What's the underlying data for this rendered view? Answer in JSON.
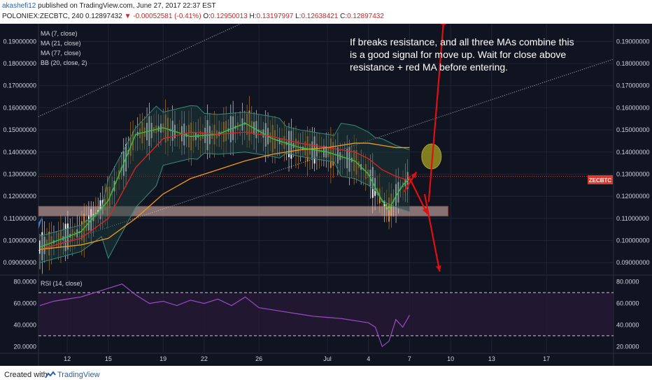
{
  "header": {
    "author": "akashefi12",
    "published": "published on TradingView.com, June 27, 2017 22:37 EST",
    "symbol": "POLONIEX:ZECBTC, 240",
    "last": "0.12897432",
    "change": "▼ -0.00052581 (-0.41%)",
    "o_label": "O:",
    "o_value": "0.12950013",
    "h_label": "H:",
    "h_value": "0.13197997",
    "l_label": "L:",
    "l_value": "0.12638421",
    "c_label": "C:",
    "c_value": "0.12897432"
  },
  "legend": {
    "ma7": "MA (7, close)",
    "ma21": "MA (21, close)",
    "ma77": "MA (77, close)",
    "bb": "BB (20, close, 2)"
  },
  "rsi_label": "RSI (14, close)",
  "symbol_badge": "ZECBTC",
  "annotation": "If breaks resistance, and all three MAs combine this is a good signal for move up. Wait for close above resistance + red MA before entering.",
  "annotation_lines": [
    "If breaks resistance, and all three MAs combine this",
    "is a good signal for move up. Wait for close above",
    "resistance + red MA before entering."
  ],
  "footer": {
    "created": "Created with",
    "brand": "TradingView"
  },
  "colors": {
    "background": "#101420",
    "ma7": "#2ecc40",
    "ma21": "#e02424",
    "ma77": "#f29a1c",
    "bb": "#3a8a7a",
    "rsi": "#9b4bc6",
    "support_zone": "#e8c0b8",
    "circle": "#a8a020",
    "arrow": "#e01010"
  },
  "chart_data": [
    {
      "type": "line",
      "title": "",
      "x_ticks": [
        "12",
        "15",
        "19",
        "22",
        "26",
        "Jul",
        "4",
        "7",
        "10",
        "13",
        "17"
      ],
      "y_ticks": [
        "0.09000000",
        "0.10000000",
        "0.11000000",
        "0.12000000",
        "0.13000000",
        "0.14000000",
        "0.15000000",
        "0.16000000",
        "0.17000000",
        "0.18000000",
        "0.19000000"
      ],
      "ylim": [
        0.085,
        0.198
      ],
      "current_price": 0.12897432,
      "support_zone": [
        0.111,
        0.1155
      ],
      "series": [
        {
          "name": "MA (7, close)",
          "x": [
            0,
            3,
            5,
            7,
            9,
            11,
            13,
            15,
            17,
            19,
            21,
            23,
            24,
            25,
            25.5,
            26,
            26.5,
            27
          ],
          "values": [
            0.097,
            0.104,
            0.118,
            0.148,
            0.151,
            0.147,
            0.148,
            0.153,
            0.146,
            0.142,
            0.14,
            0.136,
            0.13,
            0.118,
            0.114,
            0.12,
            0.125,
            0.128
          ]
        },
        {
          "name": "MA (21, close)",
          "x": [
            0,
            3,
            5,
            7,
            9,
            11,
            13,
            15,
            17,
            19,
            21,
            23,
            24,
            25,
            26,
            27
          ],
          "values": [
            0.096,
            0.101,
            0.11,
            0.133,
            0.146,
            0.149,
            0.148,
            0.149,
            0.147,
            0.144,
            0.142,
            0.14,
            0.137,
            0.132,
            0.129,
            0.127
          ]
        },
        {
          "name": "MA (77, close)",
          "x": [
            0,
            3,
            5,
            7,
            9,
            11,
            13,
            15,
            17,
            19,
            21,
            23,
            24,
            25,
            26,
            27
          ],
          "values": [
            0.096,
            0.098,
            0.101,
            0.11,
            0.121,
            0.128,
            0.132,
            0.136,
            0.139,
            0.141,
            0.142,
            0.144,
            0.144,
            0.143,
            0.142,
            0.142
          ]
        }
      ]
    },
    {
      "type": "line",
      "title": "RSI (14, close)",
      "y_ticks": [
        "20.0000",
        "40.0000",
        "60.0000",
        "80.0000"
      ],
      "ylim": [
        15,
        85
      ],
      "levels": [
        70,
        30
      ],
      "series": [
        {
          "name": "RSI (14, close)",
          "x": [
            0,
            1,
            2,
            3,
            4,
            5,
            6,
            7,
            8,
            9,
            10,
            11,
            12,
            13,
            14,
            15,
            16,
            17,
            18,
            19,
            20,
            21,
            22,
            23,
            24,
            24.5,
            25,
            25.5,
            26,
            26.5,
            27
          ],
          "values": [
            58,
            62,
            64,
            66,
            70,
            74,
            78,
            68,
            60,
            62,
            58,
            63,
            60,
            64,
            58,
            66,
            56,
            54,
            52,
            50,
            48,
            47,
            46,
            44,
            42,
            38,
            20,
            25,
            45,
            38,
            49
          ]
        }
      ]
    }
  ]
}
